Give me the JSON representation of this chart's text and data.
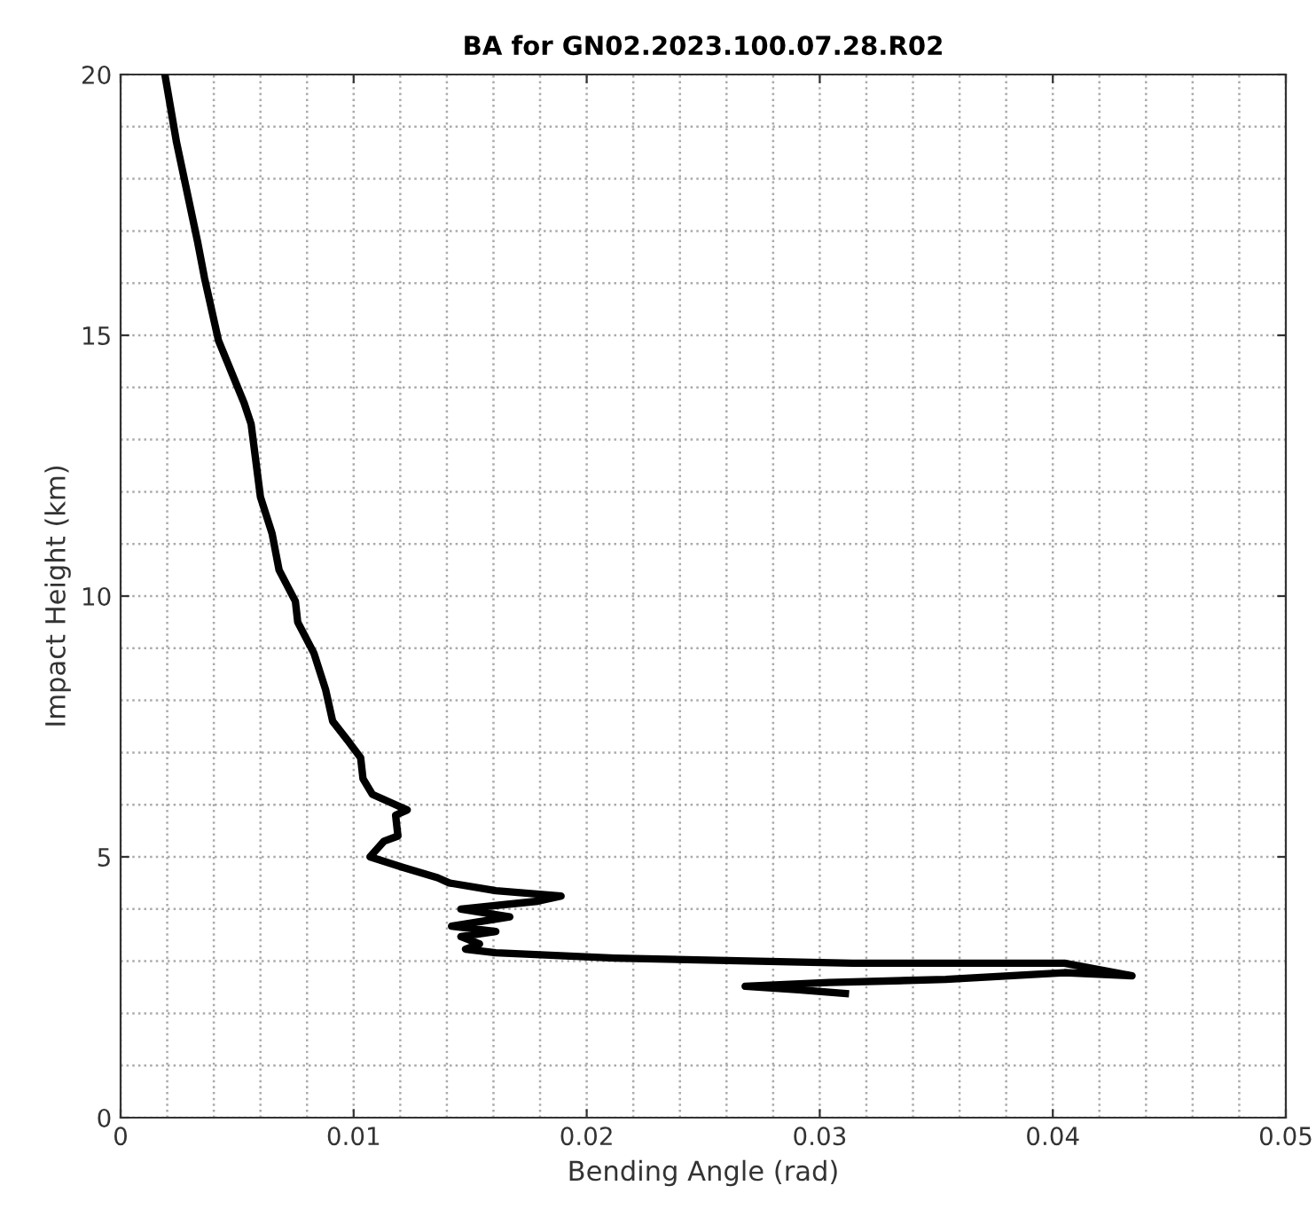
{
  "chart_data": {
    "type": "line",
    "title": "BA for GN02.2023.100.07.28.R02",
    "xlabel": "Bending Angle (rad)",
    "ylabel": "Impact Height (km)",
    "xlim": [
      0,
      0.05
    ],
    "xticks": [
      0,
      0.01,
      0.02,
      0.03,
      0.04,
      0.05
    ],
    "ylim": [
      0,
      20
    ],
    "yticks": [
      0,
      5,
      10,
      15,
      20
    ],
    "grid": true,
    "marker": "none",
    "line_style": "solid",
    "series": [
      {
        "color": "#000000",
        "x": [
          0.0019,
          0.0024,
          0.0033,
          0.0036,
          0.0042,
          0.0053,
          0.0056,
          0.006,
          0.0065,
          0.0068,
          0.0075,
          0.0076,
          0.0083,
          0.0088,
          0.0091,
          0.0098,
          0.0103,
          0.0104,
          0.0108,
          0.0118,
          0.0123,
          0.0118,
          0.0119,
          0.0113,
          0.0107,
          0.0121,
          0.0136,
          0.0141,
          0.0161,
          0.0189,
          0.0179,
          0.0146,
          0.0167,
          0.0142,
          0.0161,
          0.0146,
          0.0154,
          0.0148,
          0.0161,
          0.0212,
          0.0314,
          0.0405,
          0.0434,
          0.0405,
          0.0354,
          0.0304,
          0.0268,
          0.0291,
          0.0311
        ],
        "values": [
          20,
          18.7,
          16.8,
          16.1,
          14.9,
          13.7,
          13.3,
          11.9,
          11.2,
          10.5,
          9.9,
          9.5,
          8.9,
          8.2,
          7.6,
          7.2,
          6.9,
          6.5,
          6.2,
          6.0,
          5.9,
          5.8,
          5.4,
          5.3,
          5.0,
          4.8,
          4.6,
          4.5,
          4.35,
          4.25,
          4.15,
          4.0,
          3.85,
          3.67,
          3.57,
          3.47,
          3.33,
          3.23,
          3.16,
          3.06,
          2.96,
          2.96,
          2.72,
          2.78,
          2.65,
          2.59,
          2.52,
          2.45,
          2.38
        ]
      }
    ]
  }
}
